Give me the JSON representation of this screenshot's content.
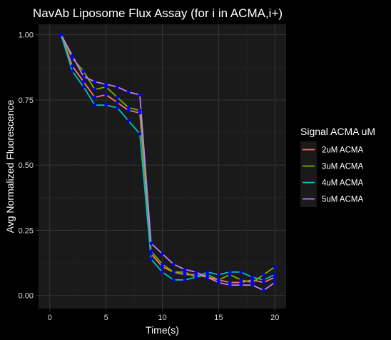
{
  "chart_data": {
    "type": "line",
    "title": "NavAb Liposome Flux Assay (for i in ACMA,i+)",
    "xlabel": "Time(s)",
    "ylabel": "Avg Normalized Fluorescence",
    "xlim": [
      -1,
      21
    ],
    "ylim": [
      -0.05,
      1.04
    ],
    "xticks": [
      0,
      5,
      10,
      15,
      20
    ],
    "xtick_labels": [
      "0",
      "5",
      "10",
      "15",
      "20"
    ],
    "yticks": [
      0.0,
      0.25,
      0.5,
      0.75,
      1.0
    ],
    "ytick_labels": [
      "0.00",
      "0.25",
      "0.50",
      "0.75",
      "1.00"
    ],
    "grid": true,
    "legend": {
      "title": "Signal ACMA uM",
      "position": "right"
    },
    "x": [
      1,
      2,
      3,
      4,
      5,
      6,
      7,
      8,
      9,
      10,
      11,
      12,
      13,
      14,
      15,
      16,
      17,
      18,
      19,
      20
    ],
    "series": [
      {
        "name": "2uM ACMA",
        "color": "#F8766D",
        "values": [
          1.0,
          0.88,
          0.82,
          0.76,
          0.77,
          0.74,
          0.71,
          0.7,
          0.16,
          0.11,
          0.09,
          0.08,
          0.08,
          0.07,
          0.06,
          0.05,
          0.05,
          0.06,
          0.05,
          0.07
        ]
      },
      {
        "name": "3uM ACMA",
        "color": "#7CAE00",
        "values": [
          1.0,
          0.91,
          0.86,
          0.79,
          0.8,
          0.76,
          0.72,
          0.71,
          0.17,
          0.12,
          0.09,
          0.09,
          0.07,
          0.08,
          0.06,
          0.08,
          0.06,
          0.05,
          0.08,
          0.11
        ]
      },
      {
        "name": "4uM ACMA",
        "color": "#00BFC4",
        "values": [
          1.0,
          0.86,
          0.8,
          0.73,
          0.73,
          0.72,
          0.67,
          0.62,
          0.14,
          0.09,
          0.06,
          0.06,
          0.07,
          0.09,
          0.08,
          0.09,
          0.09,
          0.07,
          0.06,
          0.08
        ]
      },
      {
        "name": "5uM ACMA",
        "color": "#C77CFF",
        "values": [
          1.0,
          0.92,
          0.84,
          0.82,
          0.81,
          0.8,
          0.78,
          0.77,
          0.2,
          0.16,
          0.12,
          0.1,
          0.09,
          0.07,
          0.05,
          0.04,
          0.04,
          0.04,
          0.02,
          0.05
        ]
      }
    ],
    "colors": {
      "panel_background": "#1a1a1a",
      "plot_background": "#000000",
      "grid_major": "#333333",
      "grid_minor": "#252525",
      "text": "#ffffff",
      "tick_text": "#d9d9d9",
      "marker": "#0000ff"
    },
    "marker": "circle"
  }
}
